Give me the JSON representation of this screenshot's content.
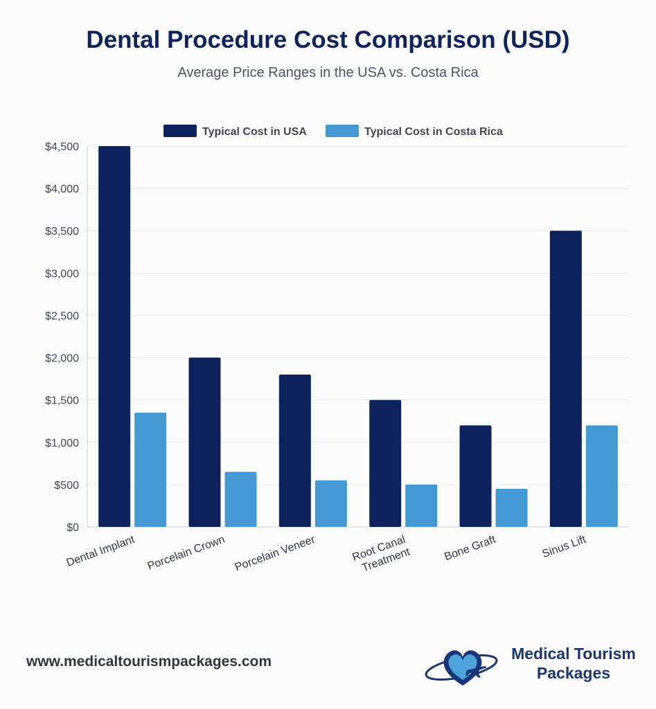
{
  "header": {
    "title": "Dental Procedure Cost Comparison (USD)",
    "subtitle": "Average Price Ranges in the USA vs. Costa Rica"
  },
  "chart_data": {
    "type": "bar",
    "title": "Dental Procedure Cost Comparison (USD)",
    "subtitle": "Average Price Ranges in the USA vs. Costa Rica",
    "categories": [
      [
        "Dental Implant"
      ],
      [
        "Porcelain Crown"
      ],
      [
        "Porcelain Veneer"
      ],
      [
        "Root Canal",
        "Treatment"
      ],
      [
        "Bone Graft"
      ],
      [
        "Sinus Lift"
      ]
    ],
    "series": [
      {
        "name": "Typical Cost in USA",
        "color": "#0e225e",
        "values": [
          4500,
          2000,
          1800,
          1500,
          1200,
          3500
        ]
      },
      {
        "name": "Typical Cost in Costa Rica",
        "color": "#4499d3",
        "values": [
          1350,
          650,
          550,
          500,
          450,
          1200
        ]
      }
    ],
    "ylim": [
      0,
      4500
    ],
    "yticks": [
      0,
      500,
      1000,
      1500,
      2000,
      2500,
      3000,
      3500,
      4000,
      4500
    ],
    "ytick_labels": [
      "$0",
      "$500",
      "$1,000",
      "$1,500",
      "$2,000",
      "$2,500",
      "$3,000",
      "$3,500",
      "$4,000",
      "$4,500"
    ],
    "grid": true,
    "legend_position": "top-center",
    "xlabel": "",
    "ylabel": ""
  },
  "footer": {
    "url": "www.medicaltourismpackages.com",
    "logo_line1": "Medical Tourism",
    "logo_line2": "Packages",
    "logo_icon": "heart-airplane-icon"
  }
}
